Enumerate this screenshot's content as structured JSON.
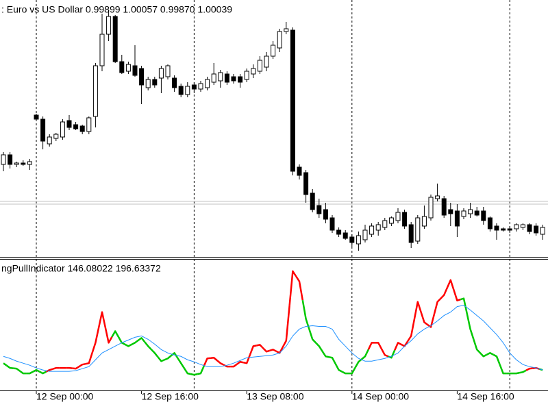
{
  "chart_data": [
    {
      "type": "candlestick",
      "title": ": Euro vs US Dollar  0.99899 1.00057 0.99870 1.00039",
      "ylim": [
        0.99845,
        1.0172
      ],
      "up_color": "#ffffff",
      "down_color": "#000000",
      "outline_color": "#000000",
      "price_lines": [
        1.0025,
        1.0023
      ],
      "price_line_color": "#c0c0c0",
      "open": [
        1.0052,
        1.0059,
        1.0052,
        1.0053,
        1.0052,
        1.0088,
        1.0085,
        1.0067,
        1.0071,
        1.0072,
        1.0084,
        1.0081,
        1.008,
        1.0076,
        1.0087,
        1.0124,
        1.0147,
        1.016,
        1.0127,
        1.012,
        1.0124,
        1.0122,
        1.0108,
        1.0114,
        1.0115,
        1.0116,
        1.0115,
        1.0109,
        1.0103,
        1.011,
        1.0107,
        1.0108,
        1.0112,
        1.0113,
        1.0118,
        1.0116,
        1.0116,
        1.0114,
        1.0118,
        1.012,
        1.0123,
        1.0131,
        1.0137,
        1.0149,
        1.015,
        1.005,
        1.0046,
        1.0031,
        1.0022,
        1.0019,
        1.0013,
        1.0004,
        1.0002,
        0.9999,
        0.9994,
        0.9997,
        1.0001,
        1.0004,
        1.0006,
        1.0009,
        1.0011,
        1.0017,
        1.0008,
        0.9996,
        1.0007,
        1.0013,
        1.0027,
        1.0027,
        1.0019,
        1.0018,
        1.0014,
        1.0016,
        1.0018,
        1.0018,
        1.0013,
        1.0007,
        1.0005,
        1.0005,
        1.0005,
        1.0006,
        1.0008,
        1.0007,
        1.0001
      ],
      "high": [
        1.0061,
        1.0061,
        1.0054,
        1.0055,
        1.0056,
        1.0089,
        1.0087,
        1.0074,
        1.0075,
        1.0085,
        1.0088,
        1.0083,
        1.0081,
        1.0087,
        1.0126,
        1.0162,
        1.0165,
        1.0161,
        1.0132,
        1.0127,
        1.0139,
        1.0124,
        1.0116,
        1.0116,
        1.0124,
        1.0125,
        1.0117,
        1.0111,
        1.0112,
        1.0112,
        1.0113,
        1.0116,
        1.0126,
        1.0121,
        1.012,
        1.0118,
        1.0118,
        1.0122,
        1.0125,
        1.0131,
        1.0134,
        1.0142,
        1.0151,
        1.0156,
        1.0152,
        1.0052,
        1.0048,
        1.0034,
        1.0027,
        1.0024,
        1.0015,
        1.0006,
        1.0004,
        1.0001,
        1.0003,
        1.0008,
        1.0009,
        1.001,
        1.0013,
        1.0014,
        1.002,
        1.0019,
        1.001,
        1.0015,
        1.0022,
        1.003,
        1.0038,
        1.0029,
        1.0024,
        1.0023,
        1.002,
        1.0024,
        1.0021,
        1.0021,
        1.0014,
        1.0009,
        1.0006,
        1.0007,
        1.0009,
        1.0009,
        1.0009,
        1.0009,
        1.0008
      ],
      "low": [
        1.0047,
        1.0049,
        1.005,
        1.0051,
        1.0048,
        1.0084,
        1.0063,
        1.0065,
        1.0069,
        1.007,
        1.0077,
        1.0077,
        1.0074,
        1.0074,
        1.0079,
        1.012,
        1.0142,
        1.0126,
        1.0118,
        1.0118,
        1.0116,
        1.0096,
        1.0106,
        1.0108,
        1.0104,
        1.0114,
        1.0105,
        1.0101,
        1.0101,
        1.0104,
        1.0105,
        1.0106,
        1.011,
        1.0108,
        1.011,
        1.0111,
        1.0108,
        1.0112,
        1.0115,
        1.0118,
        1.012,
        1.0129,
        1.0134,
        1.0147,
        1.0044,
        1.0041,
        1.0024,
        1.0017,
        1.0013,
        1.0009,
        1.0002,
        0.9999,
        0.9997,
        0.9992,
        0.9989,
        0.9995,
        0.9999,
        1.0,
        1.0004,
        1.0007,
        1.0009,
        1.0005,
        0.9991,
        0.9994,
        1.0005,
        1.0011,
        1.0025,
        1.0013,
        1.0007,
        0.9999,
        1.0012,
        1.0013,
        1.0014,
        1.0008,
        1.0003,
        0.9997,
        1.0003,
        1.0002,
        1.0003,
        1.0004,
        1.0001,
        1.0,
        0.9997
      ],
      "close": [
        1.0059,
        1.0052,
        1.0053,
        1.0052,
        1.0054,
        1.0085,
        1.0069,
        1.0072,
        1.0074,
        1.0083,
        1.0079,
        1.0078,
        1.0076,
        1.0086,
        1.0124,
        1.0147,
        1.016,
        1.0127,
        1.0119,
        1.0125,
        1.0117,
        1.011,
        1.0114,
        1.011,
        1.0122,
        1.0124,
        1.0108,
        1.0103,
        1.0109,
        1.0107,
        1.0111,
        1.0114,
        1.0118,
        1.0119,
        1.0112,
        1.0113,
        1.0112,
        1.012,
        1.0122,
        1.0128,
        1.0131,
        1.0139,
        1.0149,
        1.0151,
        1.0047,
        1.0044,
        1.003,
        1.0019,
        1.0016,
        1.0012,
        1.0004,
        1.0001,
        0.9998,
        0.9995,
        1.0,
        1.0004,
        1.0007,
        1.0008,
        1.0011,
        1.0013,
        1.0017,
        1.0007,
        0.9995,
        1.0013,
        1.0014,
        1.0028,
        1.0029,
        1.0015,
        1.0016,
        1.0007,
        1.0018,
        1.0019,
        1.0015,
        1.0011,
        1.0005,
        1.0004,
        1.0004,
        1.0004,
        1.0008,
        1.0008,
        1.0003,
        1.0002,
        1.0006
      ]
    },
    {
      "type": "line",
      "title": "ngPullIndicator 146.08022 196.63372",
      "ylim": [
        0,
        960
      ],
      "categories": [
        null,
        null,
        null,
        null,
        null,
        "12 Sep 00:00",
        null,
        null,
        null,
        null,
        null,
        null,
        null,
        null,
        null,
        null,
        null,
        null,
        null,
        null,
        null,
        "12 Sep 16:00",
        null,
        null,
        null,
        null,
        null,
        null,
        null,
        null,
        null,
        null,
        null,
        null,
        null,
        null,
        null,
        "13 Sep 08:00",
        null,
        null,
        null,
        null,
        null,
        null,
        null,
        null,
        null,
        null,
        null,
        null,
        null,
        null,
        null,
        "14 Sep 00:00",
        null,
        null,
        null,
        null,
        null,
        null,
        null,
        null,
        null,
        null,
        null,
        null,
        null,
        null,
        null,
        "14 Sep 16:00",
        null,
        null,
        null,
        null,
        null,
        null,
        null,
        null,
        null,
        null,
        null,
        null,
        null
      ],
      "series": [
        {
          "values": [
            200,
            165,
            160,
            125,
            125,
            150,
            125,
            150,
            165,
            165,
            165,
            160,
            190,
            200,
            350,
            575,
            350,
            435,
            350,
            325,
            350,
            385,
            325,
            275,
            215,
            235,
            275,
            200,
            125,
            115,
            125,
            235,
            240,
            200,
            175,
            175,
            210,
            200,
            325,
            335,
            285,
            300,
            275,
            365,
            875,
            800,
            525,
            375,
            325,
            250,
            240,
            150,
            125,
            125,
            210,
            250,
            350,
            350,
            260,
            240,
            350,
            325,
            400,
            650,
            500,
            465,
            650,
            700,
            810,
            660,
            675,
            450,
            300,
            250,
            275,
            250,
            125,
            125,
            125,
            135,
            160,
            165,
            150
          ],
          "colors": [
            "#00c800",
            "#00c800",
            "#00c800",
            "#00c800",
            "#00c800",
            "#00c800",
            "#00c800",
            "#ff0000",
            "#ff0000",
            "#ff0000",
            "#ff0000",
            "#ff0000",
            "#ff0000",
            "#ff0000",
            "#ff0000",
            "#ff0000",
            "#ff0000",
            "#00c800",
            "#00c800",
            "#00c800",
            "#00c800",
            "#00c800",
            "#00c800",
            "#00c800",
            "#00c800",
            "#00c800",
            "#00c800",
            "#00c800",
            "#00c800",
            "#00c800",
            "#00c800",
            "#ff0000",
            "#ff0000",
            "#ff0000",
            "#ff0000",
            "#ff0000",
            "#ff0000",
            "#ff0000",
            "#ff0000",
            "#ff0000",
            "#ff0000",
            "#ff0000",
            "#ff0000",
            "#ff0000",
            "#ff0000",
            "#ff0000",
            "#00c800",
            "#00c800",
            "#00c800",
            "#00c800",
            "#00c800",
            "#00c800",
            "#00c800",
            "#00c800",
            "#00c800",
            "#00c800",
            "#ff0000",
            "#ff0000",
            "#ff0000",
            "#00c800",
            "#ff0000",
            "#ff0000",
            "#ff0000",
            "#ff0000",
            "#ff0000",
            "#ff0000",
            "#ff0000",
            "#ff0000",
            "#ff0000",
            "#ff0000",
            "#00c800",
            "#00c800",
            "#00c800",
            "#00c800",
            "#00c800",
            "#00c800",
            "#00c800",
            "#00c800",
            "#00c800",
            "#00c800",
            "#ff0000",
            "#ff0000",
            "#00c800"
          ]
        },
        {
          "color": "#1e90ff",
          "values": [
            250,
            235,
            215,
            200,
            185,
            165,
            150,
            140,
            140,
            140,
            140,
            145,
            160,
            175,
            225,
            275,
            300,
            325,
            350,
            370,
            390,
            400,
            375,
            340,
            300,
            275,
            260,
            250,
            225,
            210,
            190,
            175,
            175,
            175,
            185,
            200,
            220,
            240,
            245,
            250,
            255,
            260,
            275,
            325,
            400,
            450,
            470,
            475,
            470,
            470,
            450,
            375,
            325,
            275,
            235,
            215,
            215,
            225,
            235,
            250,
            275,
            325,
            365,
            415,
            450,
            475,
            510,
            550,
            575,
            615,
            625,
            590,
            550,
            510,
            460,
            410,
            350,
            275,
            225,
            190,
            175,
            165,
            150
          ]
        }
      ]
    }
  ]
}
